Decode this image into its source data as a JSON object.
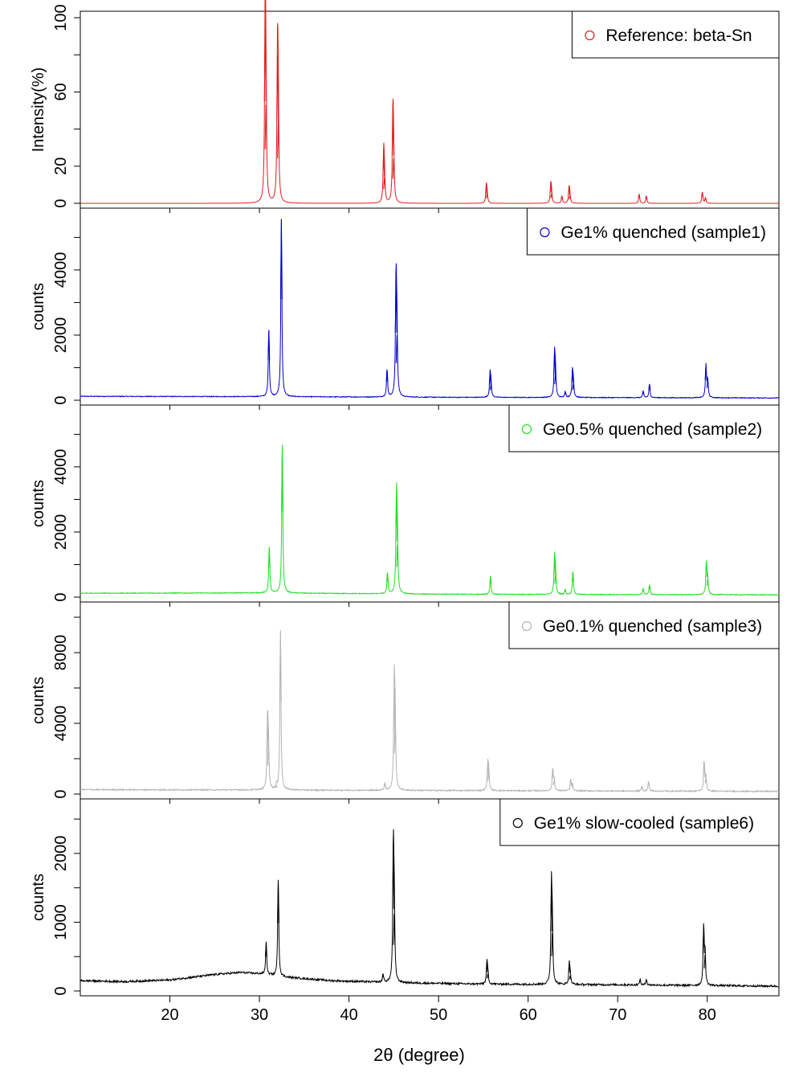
{
  "chart_data": {
    "type": "line",
    "layout": "stacked-panels",
    "xlabel": "2θ (degree)",
    "xlim": [
      10,
      88
    ],
    "x_ticks": [
      20,
      30,
      40,
      50,
      60,
      70,
      80
    ],
    "legend_position": "top-right",
    "panels": [
      {
        "name": "Reference: beta-Sn",
        "color": "#e41a1c",
        "ylabel": "Intensity(%)",
        "ylim": [
          0,
          100
        ],
        "y_ticks_labeled": [
          0,
          20,
          60,
          100
        ],
        "y_ticks_minor": [
          40,
          80
        ],
        "baseline": 0,
        "noise": 0,
        "peaks": [
          {
            "x": 30.64,
            "y": 100
          },
          {
            "x": 30.72,
            "y": 53
          },
          {
            "x": 32.02,
            "y": 80
          },
          {
            "x": 32.1,
            "y": 44
          },
          {
            "x": 43.87,
            "y": 26
          },
          {
            "x": 43.95,
            "y": 14
          },
          {
            "x": 44.9,
            "y": 47
          },
          {
            "x": 44.98,
            "y": 24
          },
          {
            "x": 55.33,
            "y": 9
          },
          {
            "x": 55.41,
            "y": 5
          },
          {
            "x": 62.53,
            "y": 10
          },
          {
            "x": 62.61,
            "y": 5
          },
          {
            "x": 63.77,
            "y": 4
          },
          {
            "x": 64.57,
            "y": 8
          },
          {
            "x": 64.65,
            "y": 4
          },
          {
            "x": 72.4,
            "y": 5
          },
          {
            "x": 73.2,
            "y": 4
          },
          {
            "x": 79.45,
            "y": 6
          },
          {
            "x": 79.8,
            "y": 3
          }
        ]
      },
      {
        "name": "Ge1% quenched (sample1)",
        "color": "#0000cc",
        "ylabel": "counts",
        "ylim": [
          0,
          5700
        ],
        "y_ticks_labeled": [
          0,
          2000,
          4000
        ],
        "y_ticks_minor": [
          1000,
          3000,
          5000
        ],
        "baseline": [
          [
            10,
            120
          ],
          [
            30,
            110
          ],
          [
            50,
            90
          ],
          [
            88,
            70
          ]
        ],
        "noise": 12,
        "peaks": [
          {
            "x": 31.05,
            "y": 2050
          },
          {
            "x": 32.45,
            "y": 5450
          },
          {
            "x": 44.25,
            "y": 850
          },
          {
            "x": 45.25,
            "y": 3600
          },
          {
            "x": 45.35,
            "y": 1900
          },
          {
            "x": 55.75,
            "y": 720
          },
          {
            "x": 55.85,
            "y": 400
          },
          {
            "x": 62.95,
            "y": 1300
          },
          {
            "x": 63.05,
            "y": 750
          },
          {
            "x": 64.15,
            "y": 180
          },
          {
            "x": 64.95,
            "y": 800
          },
          {
            "x": 65.05,
            "y": 420
          },
          {
            "x": 72.85,
            "y": 200
          },
          {
            "x": 73.55,
            "y": 420
          },
          {
            "x": 79.85,
            "y": 1000
          },
          {
            "x": 80.05,
            "y": 550
          }
        ]
      },
      {
        "name": "Ge0.5% quenched (sample2)",
        "color": "#22dd22",
        "ylabel": "counts",
        "ylim": [
          0,
          5700
        ],
        "y_ticks_labeled": [
          0,
          2000,
          4000
        ],
        "y_ticks_minor": [
          1000,
          3000,
          5000
        ],
        "baseline": [
          [
            10,
            120
          ],
          [
            30,
            130
          ],
          [
            50,
            90
          ],
          [
            88,
            70
          ]
        ],
        "noise": 12,
        "peaks": [
          {
            "x": 31.1,
            "y": 1400
          },
          {
            "x": 32.55,
            "y": 4550
          },
          {
            "x": 44.3,
            "y": 650
          },
          {
            "x": 45.3,
            "y": 2950
          },
          {
            "x": 45.4,
            "y": 1500
          },
          {
            "x": 55.8,
            "y": 560
          },
          {
            "x": 62.95,
            "y": 1100
          },
          {
            "x": 63.05,
            "y": 600
          },
          {
            "x": 64.15,
            "y": 150
          },
          {
            "x": 65.0,
            "y": 700
          },
          {
            "x": 72.85,
            "y": 180
          },
          {
            "x": 73.55,
            "y": 300
          },
          {
            "x": 79.9,
            "y": 980
          },
          {
            "x": 80.05,
            "y": 500
          }
        ]
      },
      {
        "name": "Ge0.1% quenched (sample3)",
        "color": "#b4b4b4",
        "ylabel": "counts",
        "ylim": [
          0,
          10500
        ],
        "y_ticks_labeled": [
          0,
          4000,
          8000
        ],
        "y_ticks_minor": [
          2000,
          6000,
          10000
        ],
        "baseline": [
          [
            10,
            250
          ],
          [
            30,
            230
          ],
          [
            50,
            200
          ],
          [
            88,
            150
          ]
        ],
        "noise": 35,
        "peaks": [
          {
            "x": 30.9,
            "y": 3800
          },
          {
            "x": 31.0,
            "y": 2500
          },
          {
            "x": 31.9,
            "y": 250
          },
          {
            "x": 32.35,
            "y": 9050
          },
          {
            "x": 44.0,
            "y": 400
          },
          {
            "x": 45.05,
            "y": 5800
          },
          {
            "x": 45.15,
            "y": 3800
          },
          {
            "x": 55.5,
            "y": 1500
          },
          {
            "x": 55.6,
            "y": 1000
          },
          {
            "x": 62.75,
            "y": 1250
          },
          {
            "x": 62.9,
            "y": 600
          },
          {
            "x": 64.75,
            "y": 650
          },
          {
            "x": 64.95,
            "y": 350
          },
          {
            "x": 72.7,
            "y": 250
          },
          {
            "x": 73.45,
            "y": 550
          },
          {
            "x": 79.65,
            "y": 1700
          },
          {
            "x": 79.85,
            "y": 800
          }
        ]
      },
      {
        "name": "Ge1% slow-cooled (sample6)",
        "color": "#000000",
        "ylabel": "counts",
        "ylim": [
          0,
          2700
        ],
        "y_ticks_labeled": [
          0,
          1000,
          2000
        ],
        "y_ticks_minor": [
          500,
          1500,
          2500
        ],
        "baseline": [
          [
            10,
            150
          ],
          [
            15,
            135
          ],
          [
            20,
            160
          ],
          [
            25,
            240
          ],
          [
            28,
            270
          ],
          [
            30,
            250
          ],
          [
            33,
            200
          ],
          [
            38,
            150
          ],
          [
            45,
            120
          ],
          [
            55,
            100
          ],
          [
            70,
            90
          ],
          [
            88,
            70
          ]
        ],
        "noise": 14,
        "peaks": [
          {
            "x": 30.75,
            "y": 470
          },
          {
            "x": 32.1,
            "y": 1400
          },
          {
            "x": 43.8,
            "y": 120
          },
          {
            "x": 44.95,
            "y": 1950
          },
          {
            "x": 45.05,
            "y": 1000
          },
          {
            "x": 55.4,
            "y": 310
          },
          {
            "x": 55.5,
            "y": 150
          },
          {
            "x": 62.6,
            "y": 1400
          },
          {
            "x": 62.7,
            "y": 750
          },
          {
            "x": 64.6,
            "y": 310
          },
          {
            "x": 64.7,
            "y": 130
          },
          {
            "x": 72.5,
            "y": 80
          },
          {
            "x": 73.2,
            "y": 80
          },
          {
            "x": 79.6,
            "y": 850
          },
          {
            "x": 79.75,
            "y": 450
          }
        ]
      }
    ]
  }
}
